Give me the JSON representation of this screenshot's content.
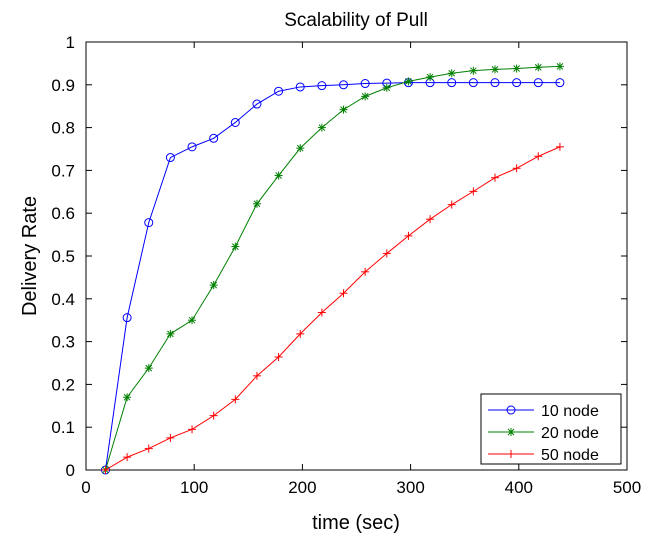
{
  "chart_data": {
    "type": "line",
    "title": "Scalability of Pull",
    "xlabel": "time (sec)",
    "ylabel": "Delivery Rate",
    "xlim": [
      0,
      500
    ],
    "ylim": [
      0,
      1
    ],
    "xticks": [
      "0",
      "100",
      "200",
      "300",
      "400",
      "500"
    ],
    "yticks": [
      "0",
      "0.1",
      "0.2",
      "0.3",
      "0.4",
      "0.5",
      "0.6",
      "0.7",
      "0.8",
      "0.9",
      "1"
    ],
    "grid": false,
    "legend_position": "bottom-right",
    "x": [
      18,
      38,
      58,
      78,
      98,
      118,
      138,
      158,
      178,
      198,
      218,
      238,
      258,
      278,
      298,
      318,
      338,
      358,
      378,
      398,
      418,
      438
    ],
    "series": [
      {
        "name": "10 node",
        "color": "#0000ff",
        "marker": "circle",
        "values": [
          0,
          0.356,
          0.578,
          0.73,
          0.755,
          0.775,
          0.812,
          0.855,
          0.885,
          0.895,
          0.898,
          0.9,
          0.903,
          0.904,
          0.905,
          0.905,
          0.905,
          0.905,
          0.905,
          0.905,
          0.905,
          0.905
        ]
      },
      {
        "name": "20 node",
        "color": "#008000",
        "marker": "star",
        "values": [
          0,
          0.17,
          0.238,
          0.318,
          0.35,
          0.432,
          0.522,
          0.622,
          0.688,
          0.752,
          0.8,
          0.842,
          0.873,
          0.893,
          0.908,
          0.918,
          0.927,
          0.933,
          0.936,
          0.938,
          0.941,
          0.943
        ]
      },
      {
        "name": "50 node",
        "color": "#ff0000",
        "marker": "plus",
        "values": [
          0,
          0.03,
          0.05,
          0.075,
          0.095,
          0.127,
          0.165,
          0.22,
          0.264,
          0.318,
          0.368,
          0.413,
          0.463,
          0.506,
          0.547,
          0.586,
          0.62,
          0.651,
          0.683,
          0.705,
          0.733,
          0.755
        ]
      }
    ]
  }
}
